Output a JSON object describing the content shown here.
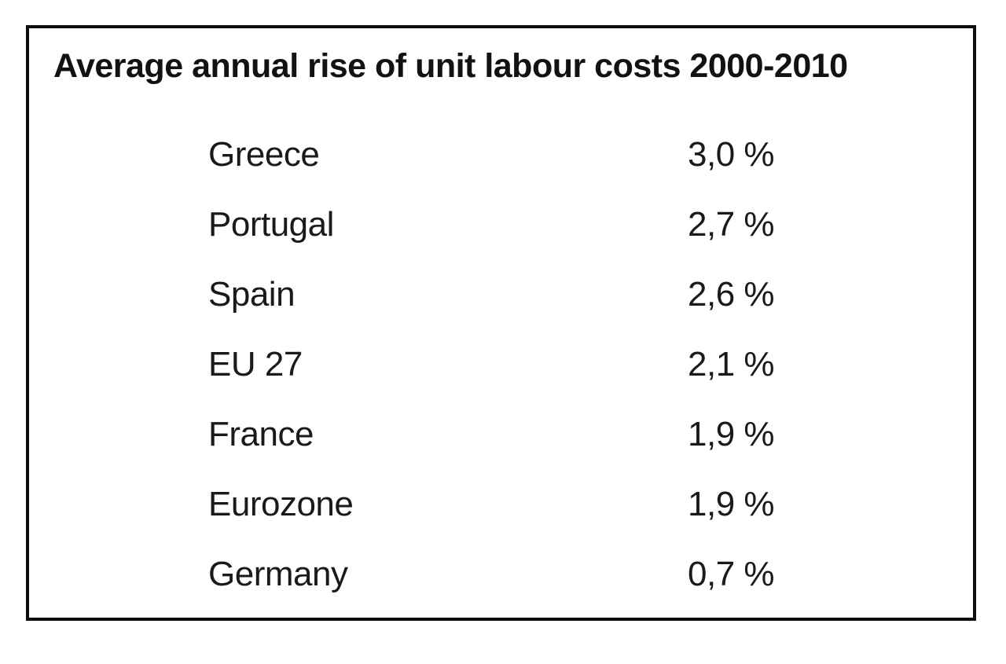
{
  "colors": {
    "background": "#ffffff",
    "border": "#0d0d0d",
    "text": "#1a1a1a"
  },
  "chart_data": {
    "type": "table",
    "title": "Average annual rise of unit labour costs 2000-2010",
    "categories": [
      "Greece",
      "Portugal",
      "Spain",
      "EU 27",
      "France",
      "Eurozone",
      "Germany"
    ],
    "values": [
      "3,0 %",
      "2,7 %",
      "2,6 %",
      "2,1 %",
      "1,9 %",
      "1,9 %",
      "0,7 %"
    ],
    "values_numeric": [
      3.0,
      2.7,
      2.6,
      2.1,
      1.9,
      1.9,
      0.7
    ],
    "unit": "%",
    "decimal_separator": ",",
    "layout": {
      "columns": [
        "country",
        "value"
      ],
      "border": "solid black frame",
      "grid": false
    }
  }
}
